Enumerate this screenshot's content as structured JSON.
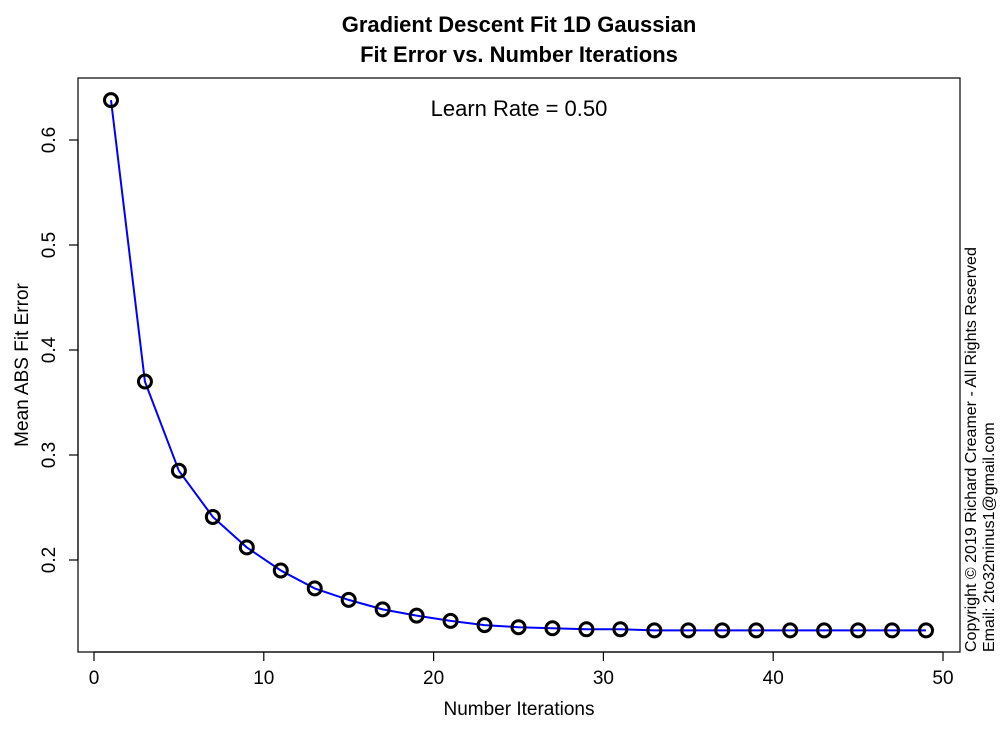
{
  "chart_data": {
    "type": "line",
    "title": "Gradient Descent Fit 1D Gaussian",
    "subtitle": "Fit Error vs. Number Iterations",
    "xlabel": "Number Iterations",
    "ylabel": "Mean ABS Fit Error",
    "xlim": [
      0,
      50
    ],
    "ylim": [
      0.12,
      0.65
    ],
    "xticks": [
      0,
      10,
      20,
      30,
      40,
      50
    ],
    "yticks": [
      0.2,
      0.3,
      0.4,
      0.5,
      0.6
    ],
    "annotation": "Learn Rate = 0.50",
    "line_color": "#0000ff",
    "marker_color": "#000000",
    "grid": false,
    "series": [
      {
        "x": [
          1,
          3,
          5,
          7,
          9,
          11,
          13,
          15,
          17,
          19,
          21,
          23,
          25,
          27,
          29,
          31,
          33,
          35,
          37,
          39,
          41,
          43,
          45,
          47,
          49
        ],
        "values": [
          0.638,
          0.37,
          0.285,
          0.241,
          0.212,
          0.19,
          0.173,
          0.162,
          0.153,
          0.147,
          0.142,
          0.138,
          0.136,
          0.135,
          0.134,
          0.134,
          0.133,
          0.133,
          0.133,
          0.133,
          0.133,
          0.133,
          0.133,
          0.133,
          0.133
        ]
      }
    ]
  },
  "copyright": {
    "line1": "Copyright © 2019 Richard Creamer - All Rights Reserved",
    "line2": "Email: 2to32minus1@gmail.com"
  }
}
